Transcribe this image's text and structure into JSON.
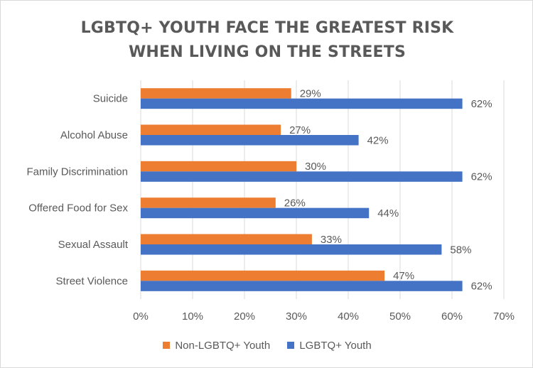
{
  "chart_data": {
    "type": "bar",
    "orientation": "horizontal",
    "title_lines": [
      "LGBTQ+ YOUTH FACE THE GREATEST RISK",
      "WHEN LIVING ON THE STREETS"
    ],
    "categories": [
      "Suicide",
      "Alcohol Abuse",
      "Family Discrimination",
      "Offered Food for Sex",
      "Sexual Assault",
      "Street Violence"
    ],
    "series": [
      {
        "name": "Non-LGBTQ+ Youth",
        "color": "#ed7d31",
        "values": [
          29,
          27,
          30,
          26,
          33,
          47
        ],
        "labels": [
          "29%",
          "27%",
          "30%",
          "26%",
          "33%",
          "47%"
        ]
      },
      {
        "name": "LGBTQ+ Youth",
        "color": "#4472c4",
        "values": [
          62,
          42,
          62,
          44,
          58,
          62
        ],
        "labels": [
          "62%",
          "42%",
          "62%",
          "44%",
          "58%",
          "62%"
        ]
      }
    ],
    "x_ticks": [
      "0%",
      "10%",
      "20%",
      "30%",
      "40%",
      "50%",
      "60%",
      "70%"
    ],
    "xlim": [
      0,
      70
    ],
    "grid": "vertical",
    "legend_position": "bottom"
  }
}
